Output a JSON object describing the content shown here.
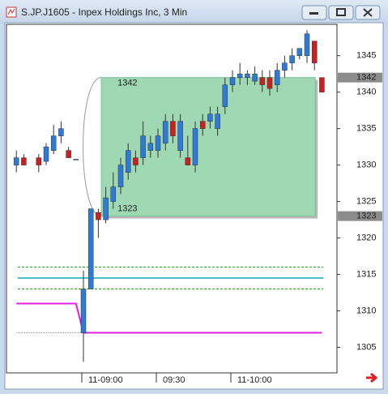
{
  "chart_data": {
    "type": "candlestick",
    "title": "S.JP.J1605 - Inpex Holdings Inc, 3 Min",
    "categories": [
      null,
      null,
      null,
      null,
      null,
      null,
      null,
      null,
      null,
      "11-09:00",
      null,
      null,
      null,
      null,
      null,
      null,
      null,
      null,
      null,
      "09:30",
      null,
      null,
      null,
      null,
      null,
      null,
      null,
      null,
      null,
      "11-10:00",
      null,
      null,
      null,
      null,
      null,
      null,
      null,
      null,
      null,
      null,
      null,
      null
    ],
    "open": [
      1330,
      1331,
      null,
      1331,
      1330.5,
      1332,
      1334,
      1332,
      1330.8,
      1307,
      1313,
      1323.5,
      1322.5,
      1325,
      1327,
      1329,
      1331,
      1331,
      1332,
      1332,
      1333,
      1336,
      1332,
      1331,
      1330,
      1336,
      1336,
      1335,
      1338,
      1341,
      1342,
      1342,
      1341.5,
      1342,
      1342,
      1341,
      1343,
      1344,
      1345,
      1345,
      1347,
      1342
    ],
    "high": [
      1332,
      1331.5,
      null,
      1331.5,
      1333,
      1335.5,
      1336,
      1332.5,
      1330.8,
      1315.5,
      1324,
      1324,
      1327,
      1329,
      1331,
      1333,
      1332,
      1336,
      1334,
      1335,
      1337,
      1337,
      1337,
      1334,
      1336,
      1337,
      1338,
      1338,
      1342,
      1343,
      1344,
      1343,
      1343.5,
      1343,
      1343,
      1344,
      1345,
      1346,
      1346,
      1348.5,
      1347,
      1342
    ],
    "low": [
      1329,
      1330,
      null,
      1329,
      1330,
      1331.5,
      1333,
      1331,
      1330.8,
      1303,
      1313,
      1320,
      1322,
      1324,
      1326,
      1328,
      1329,
      1330,
      1331,
      1331,
      1332,
      1333,
      1331,
      1330,
      1329,
      1334,
      1335,
      1334,
      1337,
      1340,
      1341,
      1341,
      1341,
      1340,
      1339.5,
      1340,
      1342,
      1343,
      1344.5,
      1344,
      1343,
      1340
    ],
    "close": [
      1331,
      1330,
      null,
      1330,
      1332.5,
      1334,
      1335,
      1331,
      1330.8,
      1313,
      1324,
      1322.5,
      1325.5,
      1327,
      1330,
      1332,
      1330,
      1334,
      1333,
      1334,
      1336,
      1334,
      1336,
      1330,
      1335,
      1335,
      1337,
      1337,
      1341,
      1342,
      1342.5,
      1342.5,
      1342.5,
      1341,
      1340.5,
      1343,
      1344,
      1345,
      1346,
      1348,
      1344,
      1340
    ],
    "up_color": "#2f7ad6",
    "down_color": "#cc2020",
    "series": [
      {
        "color": "#e020e0",
        "values": [
          1311,
          1311,
          1311,
          1311,
          1311,
          1311,
          1311,
          1311,
          1311,
          1307,
          1307,
          1307,
          1307,
          1307,
          1307,
          1307,
          1307,
          1307,
          1307,
          1307,
          1307,
          1307,
          1307,
          1307,
          1307,
          1307,
          1307,
          1307,
          1307,
          1307,
          1307,
          1307,
          1307,
          1307,
          1307,
          1307,
          1307,
          1307,
          1307,
          1307,
          1307,
          1307
        ]
      },
      {
        "color": "#aaaaaa",
        "values": [
          1307,
          1307,
          1307,
          1307,
          1307,
          1307,
          1307,
          1307,
          1307,
          1307,
          null,
          null,
          null,
          null,
          null,
          null,
          null,
          null,
          null,
          null,
          null,
          null,
          null,
          null,
          null,
          null,
          null,
          null,
          null,
          null,
          null,
          null,
          null,
          null,
          null,
          null,
          null,
          null,
          null,
          null,
          null,
          null
        ]
      }
    ],
    "hlines": [
      {
        "value": 1316,
        "color": "#2aa02a",
        "dashed": true
      },
      {
        "value": 1314.5,
        "color": "#10a8b8",
        "dashed": false
      },
      {
        "value": 1313,
        "color": "#2aa02a",
        "dashed": true
      }
    ],
    "zone": {
      "top": 1342,
      "bottom": 1323,
      "color": "#9ed9b4"
    },
    "price_markers": [
      1342,
      1323
    ],
    "ylim": [
      1301.5,
      1349.3
    ],
    "yticks": [
      1305,
      1310,
      1315,
      1320,
      1325,
      1330,
      1335,
      1340,
      1345
    ]
  }
}
